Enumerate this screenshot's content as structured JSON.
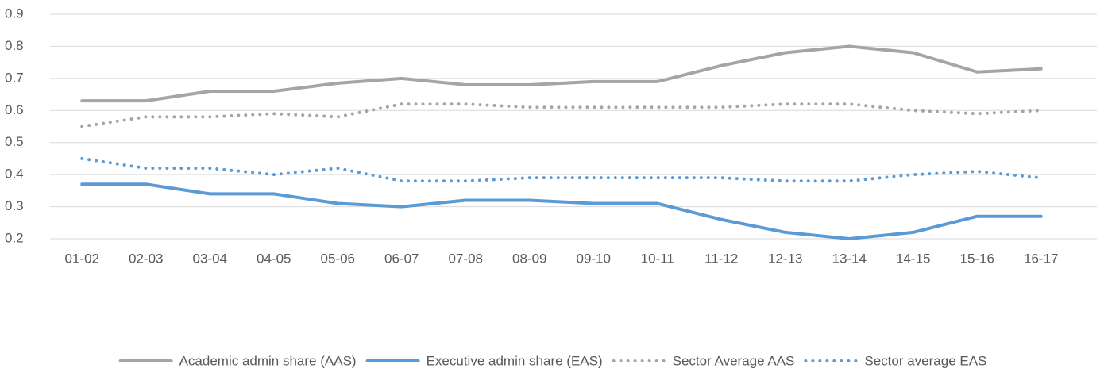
{
  "chart_data": {
    "type": "line",
    "categories": [
      "01-02",
      "02-03",
      "03-04",
      "04-05",
      "05-06",
      "06-07",
      "07-08",
      "08-09",
      "09-10",
      "10-11",
      "11-12",
      "12-13",
      "13-14",
      "14-15",
      "15-16",
      "16-17"
    ],
    "series": [
      {
        "name": "Academic admin share (AAS)",
        "color": "#a5a5a5",
        "style": "solid",
        "values": [
          0.63,
          0.63,
          0.66,
          0.66,
          0.685,
          0.7,
          0.68,
          0.68,
          0.69,
          0.69,
          0.74,
          0.78,
          0.8,
          0.78,
          0.72,
          0.73
        ]
      },
      {
        "name": "Executive admin share (EAS)",
        "color": "#5b9bd5",
        "style": "solid",
        "values": [
          0.37,
          0.37,
          0.34,
          0.34,
          0.31,
          0.3,
          0.32,
          0.32,
          0.31,
          0.31,
          0.26,
          0.22,
          0.2,
          0.22,
          0.27,
          0.27
        ]
      },
      {
        "name": "Sector Average AAS",
        "color": "#a5a5a5",
        "style": "dotted",
        "values": [
          0.55,
          0.58,
          0.58,
          0.59,
          0.58,
          0.62,
          0.62,
          0.61,
          0.61,
          0.61,
          0.61,
          0.62,
          0.62,
          0.6,
          0.59,
          0.6
        ]
      },
      {
        "name": "Sector average EAS",
        "color": "#5b9bd5",
        "style": "dotted",
        "values": [
          0.45,
          0.42,
          0.42,
          0.4,
          0.42,
          0.38,
          0.38,
          0.39,
          0.39,
          0.39,
          0.39,
          0.38,
          0.38,
          0.4,
          0.41,
          0.39
        ]
      }
    ],
    "ylim": [
      0.2,
      0.9
    ],
    "yticks": [
      0.2,
      0.3,
      0.4,
      0.5,
      0.6,
      0.7,
      0.8,
      0.9
    ],
    "grid": true,
    "legend": "bottom"
  }
}
